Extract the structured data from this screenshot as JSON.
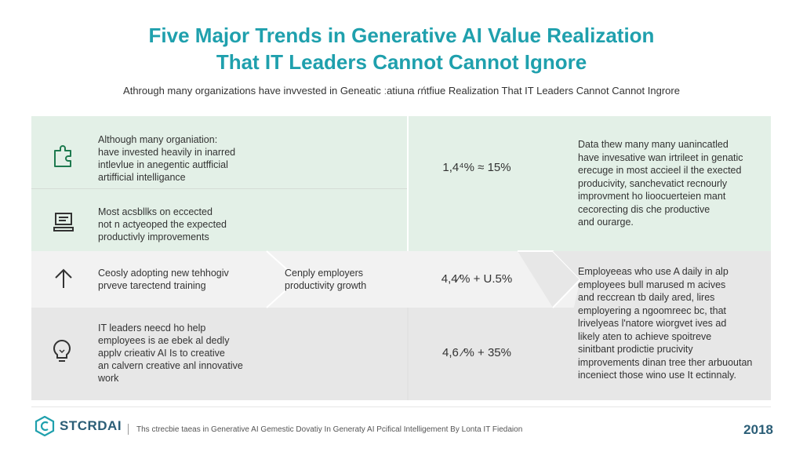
{
  "title": {
    "line1": "Five Major Trends in Generative AI Value Realization",
    "line2": "That IT Leaders Cannot Cannot Ignore"
  },
  "subtitle": "Athrough many organizations have invvested in Geneatic ːatiuna ɾńtfiue Realization That IT Leaders Cannot Cannot Ingrore",
  "rows": [
    {
      "icon": "puzzle-icon",
      "text": [
        "Although many organiation:",
        "have invested heavily in inarred",
        "intlevlue in anegentic autfficial",
        "artifficial intelligance"
      ]
    },
    {
      "icon": "document-icon",
      "text": [
        "Most acsbllks on eccected",
        "not n actyeoped the expected",
        "productivly improvements"
      ]
    },
    {
      "icon": "arrow-up-icon",
      "text": [
        "Ceosly adopting new tehhogiv",
        "prveve tarectend training"
      ]
    },
    {
      "icon": "lightbulb-icon",
      "text": [
        "IT leaders neecd ho help",
        "employees is ae ebek al dedly",
        "applv crieativ AI Is to creative",
        "an calvern creative anl innovative",
        "work"
      ]
    }
  ],
  "middle_note": [
    "Cenply employers",
    "productivity growth"
  ],
  "stats": [
    "1,4⁴% ≈ 15%",
    "4,4⁄% + U.5%",
    "4,6 ⁄% + 35%"
  ],
  "side_notes": [
    [
      "Data thew many many uanincatled",
      "have invesative wan irtrileet in genatic",
      "erecuge in most accieel il the exected",
      "producivity, sanchevatict recnourly",
      "improvment ho lioocuerteien mant",
      "cecorecting dis che productive",
      "and ourarge."
    ],
    [
      "Employeeas who use A daily in alp",
      "employees bull marused m acives",
      "and reccrean tb daily ared, lires",
      "employering a ngoomreec bc, that",
      "lrivelyeas l'natore wiorgvet ives ad",
      "likely aten to achieve spoitreve",
      "sinitbant prodictie prucivity",
      "improvements dinan tree ther arbuoutan",
      "inceniect those wino use It ectinnaly."
    ]
  ],
  "footer": {
    "brand": "STCRDAI",
    "caption": "Ths ctrecbie taeas in Generative AI Gemestic Dovatiy In Generaty AI Pcifical Intelligement By Lonta IT Fiedaion",
    "year": "2018"
  },
  "colors": {
    "title": "#1fa0ad",
    "green_band": "#e3f0e7",
    "icon_green": "#1e7a4f",
    "brand": "#2b5e77"
  }
}
